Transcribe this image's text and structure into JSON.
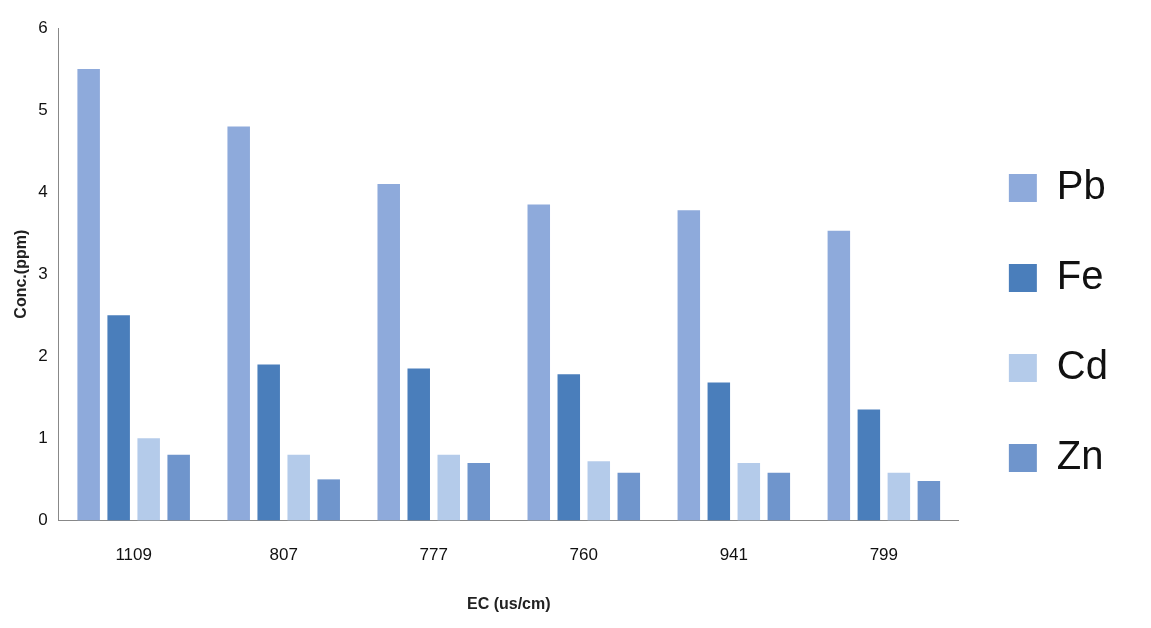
{
  "chart_data": {
    "type": "bar",
    "xlabel": "EC (us/cm)",
    "ylabel": "Conc.(ppm)",
    "categories": [
      "1109",
      "807",
      "777",
      "760",
      "941",
      "799"
    ],
    "series": [
      {
        "name": "Pb",
        "color": "#8eaadb",
        "values": [
          5.5,
          4.8,
          4.1,
          3.85,
          3.78,
          3.53
        ]
      },
      {
        "name": "Fe",
        "color": "#4a7ebb",
        "values": [
          2.5,
          1.9,
          1.85,
          1.78,
          1.68,
          1.35
        ]
      },
      {
        "name": "Cd",
        "color": "#b4cbea",
        "values": [
          1.0,
          0.8,
          0.8,
          0.72,
          0.7,
          0.58
        ]
      },
      {
        "name": "Zn",
        "color": "#6f95cc",
        "values": [
          0.8,
          0.5,
          0.7,
          0.58,
          0.58,
          0.48
        ]
      }
    ],
    "ylim": [
      0,
      6
    ],
    "yticks": [
      0,
      1,
      2,
      3,
      4,
      5,
      6
    ],
    "grid": false,
    "legend": "right"
  }
}
